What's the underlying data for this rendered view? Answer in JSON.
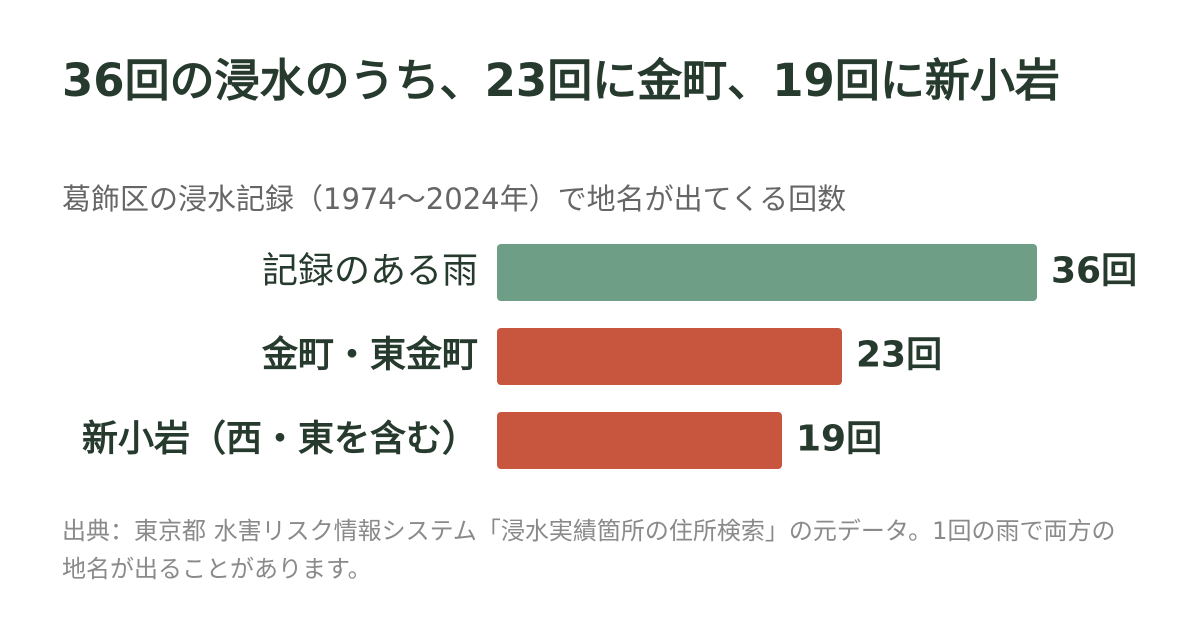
{
  "chart_data": {
    "type": "bar",
    "orientation": "horizontal",
    "title": "36回の浸水のうち、23回に金町、19回に新小岩",
    "subtitle": "葛飾区の浸水記録（1974〜2024年）で地名が出てくる回数",
    "categories": [
      "記録のある雨",
      "金町・東金町",
      "新小岩（西・東を含む）"
    ],
    "label_weights": [
      "normal",
      "bold",
      "bold"
    ],
    "values": [
      36,
      23,
      19
    ],
    "value_labels": [
      "36回",
      "23回",
      "19回"
    ],
    "colors": [
      "#6e9e85",
      "#c8553d",
      "#c8553d"
    ],
    "source": "出典：東京都 水害リスク情報システム「浸水実績箇所の住所検索」の元データ。1回の雨で両方の地名が出ることがあります。"
  }
}
